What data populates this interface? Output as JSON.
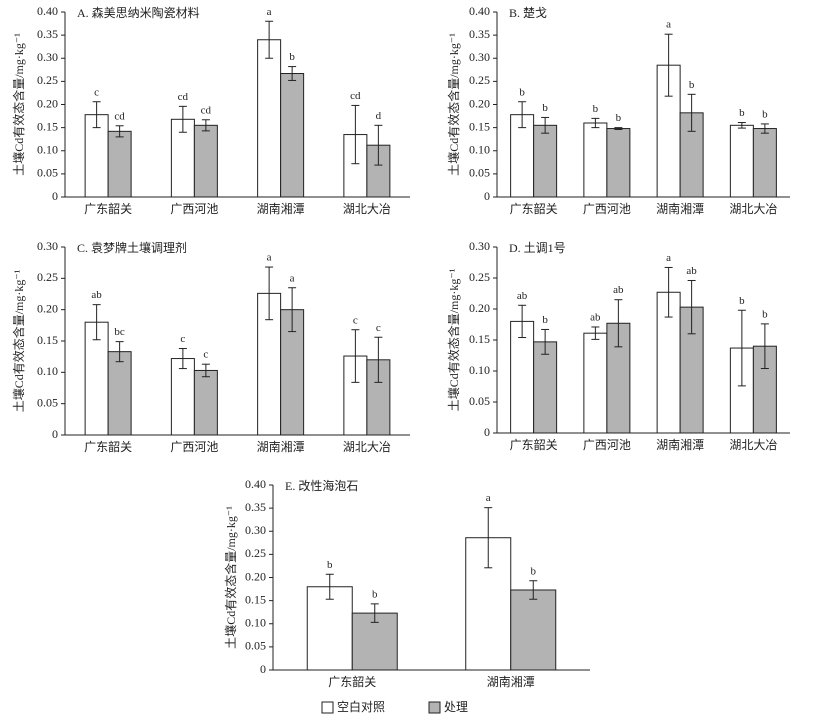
{
  "chart_data": [
    {
      "type": "bar",
      "title": "A. 森美思纳米陶瓷材料",
      "y_label": "土壤Cd有效态含量/mg·kg⁻¹",
      "categories": [
        "广东韶关",
        "广西河池",
        "湖南湘潭",
        "湖北大冶"
      ],
      "ylim": [
        0,
        0.4
      ],
      "yticks": [
        0,
        0.05,
        {
          "value": 0.1,
          "label": "0.10"
        },
        0.15,
        {
          "value": 0.2,
          "label": "0.20"
        },
        0.25,
        {
          "value": 0.3,
          "label": "0.30"
        },
        0.35,
        {
          "value": 0.4,
          "label": "0.40"
        }
      ],
      "series": [
        {
          "name": "空白对照",
          "color": "#ffffff",
          "values": [
            0.178,
            0.168,
            0.34,
            0.135
          ],
          "errors": [
            0.028,
            0.028,
            0.04,
            0.063
          ],
          "letters": [
            "c",
            "cd",
            "a",
            "cd"
          ]
        },
        {
          "name": "处理",
          "color": "#b3b3b3",
          "values": [
            0.142,
            0.155,
            0.267,
            0.112
          ],
          "errors": [
            0.012,
            0.012,
            0.015,
            0.043
          ],
          "letters": [
            "cd",
            "cd",
            "b",
            "d"
          ]
        }
      ]
    },
    {
      "type": "bar",
      "title": "B. 楚戈",
      "y_label": "土壤Cd有效态含量/mg·kg⁻¹",
      "categories": [
        "广东韶关",
        "广西河池",
        "湖南湘潭",
        "湖北大冶"
      ],
      "ylim": [
        0,
        0.4
      ],
      "yticks": [
        0,
        0.05,
        {
          "value": 0.1,
          "label": "0.10"
        },
        0.15,
        {
          "value": 0.2,
          "label": "0.20"
        },
        0.25,
        {
          "value": 0.3,
          "label": "0.30"
        },
        0.35,
        {
          "value": 0.4,
          "label": "0.40"
        }
      ],
      "series": [
        {
          "name": "空白对照",
          "color": "#ffffff",
          "values": [
            0.178,
            0.16,
            0.285,
            0.155
          ],
          "errors": [
            0.028,
            0.01,
            0.067,
            0.006
          ],
          "letters": [
            "b",
            "b",
            "a",
            "b"
          ]
        },
        {
          "name": "处理",
          "color": "#b3b3b3",
          "values": [
            0.155,
            0.148,
            0.182,
            0.148
          ],
          "errors": [
            0.017,
            0.002,
            0.04,
            0.01
          ],
          "letters": [
            "b",
            "b",
            "b",
            "b"
          ]
        }
      ]
    },
    {
      "type": "bar",
      "title": "C. 袁梦牌土壤调理剂",
      "y_label": "土壤Cd有效态含量/mg·kg⁻¹",
      "categories": [
        "广东韶关",
        "广西河池",
        "湖南湘潭",
        "湖北大冶"
      ],
      "ylim": [
        0,
        0.3
      ],
      "yticks": [
        0,
        0.05,
        {
          "value": 0.1,
          "label": "0.10"
        },
        0.15,
        {
          "value": 0.2,
          "label": "0.20"
        },
        0.25,
        {
          "value": 0.3,
          "label": "0.30"
        }
      ],
      "series": [
        {
          "name": "空白对照",
          "color": "#ffffff",
          "values": [
            0.18,
            0.122,
            0.226,
            0.126
          ],
          "errors": [
            0.028,
            0.016,
            0.042,
            0.042
          ],
          "letters": [
            "ab",
            "c",
            "a",
            "c"
          ]
        },
        {
          "name": "处理",
          "color": "#b3b3b3",
          "values": [
            0.133,
            0.103,
            0.2,
            0.12
          ],
          "errors": [
            0.016,
            0.01,
            0.035,
            0.036
          ],
          "letters": [
            "bc",
            "c",
            "a",
            "c"
          ]
        }
      ]
    },
    {
      "type": "bar",
      "title": "D. 土调1号",
      "y_label": "土壤Cd有效态含量/mg·kg⁻¹",
      "categories": [
        "广东韶关",
        "广西河池",
        "湖南湘潭",
        "湖北大冶"
      ],
      "ylim": [
        0,
        0.3
      ],
      "yticks": [
        0,
        0.05,
        {
          "value": 0.1,
          "label": "0.10"
        },
        0.15,
        {
          "value": 0.2,
          "label": "0.20"
        },
        0.25,
        {
          "value": 0.3,
          "label": "0.30"
        }
      ],
      "series": [
        {
          "name": "空白对照",
          "color": "#ffffff",
          "values": [
            0.18,
            0.161,
            0.227,
            0.137
          ],
          "errors": [
            0.026,
            0.01,
            0.04,
            0.061
          ],
          "letters": [
            "ab",
            "ab",
            "a",
            "b"
          ]
        },
        {
          "name": "处理",
          "color": "#b3b3b3",
          "values": [
            0.147,
            0.177,
            0.203,
            0.14
          ],
          "errors": [
            0.02,
            0.038,
            0.043,
            0.036
          ],
          "letters": [
            "b",
            "ab",
            "ab",
            "b"
          ]
        }
      ]
    },
    {
      "type": "bar",
      "title": "E. 改性海泡石",
      "y_label": "土壤Cd有效态含量/mg·kg⁻¹",
      "categories": [
        "广东韶关",
        "湖南湘潭"
      ],
      "ylim": [
        0,
        0.4
      ],
      "yticks": [
        0,
        0.05,
        {
          "value": 0.1,
          "label": "0.10"
        },
        0.15,
        {
          "value": 0.2,
          "label": "0.20"
        },
        0.25,
        {
          "value": 0.3,
          "label": "0.30"
        },
        0.35,
        {
          "value": 0.4,
          "label": "0.40"
        }
      ],
      "series": [
        {
          "name": "空白对照",
          "color": "#ffffff",
          "values": [
            0.18,
            0.286
          ],
          "errors": [
            0.027,
            0.065
          ],
          "letters": [
            "b",
            "a"
          ]
        },
        {
          "name": "处理",
          "color": "#b3b3b3",
          "values": [
            0.123,
            0.173
          ],
          "errors": [
            0.02,
            0.02
          ],
          "letters": [
            "b",
            "b"
          ]
        }
      ]
    }
  ]
}
